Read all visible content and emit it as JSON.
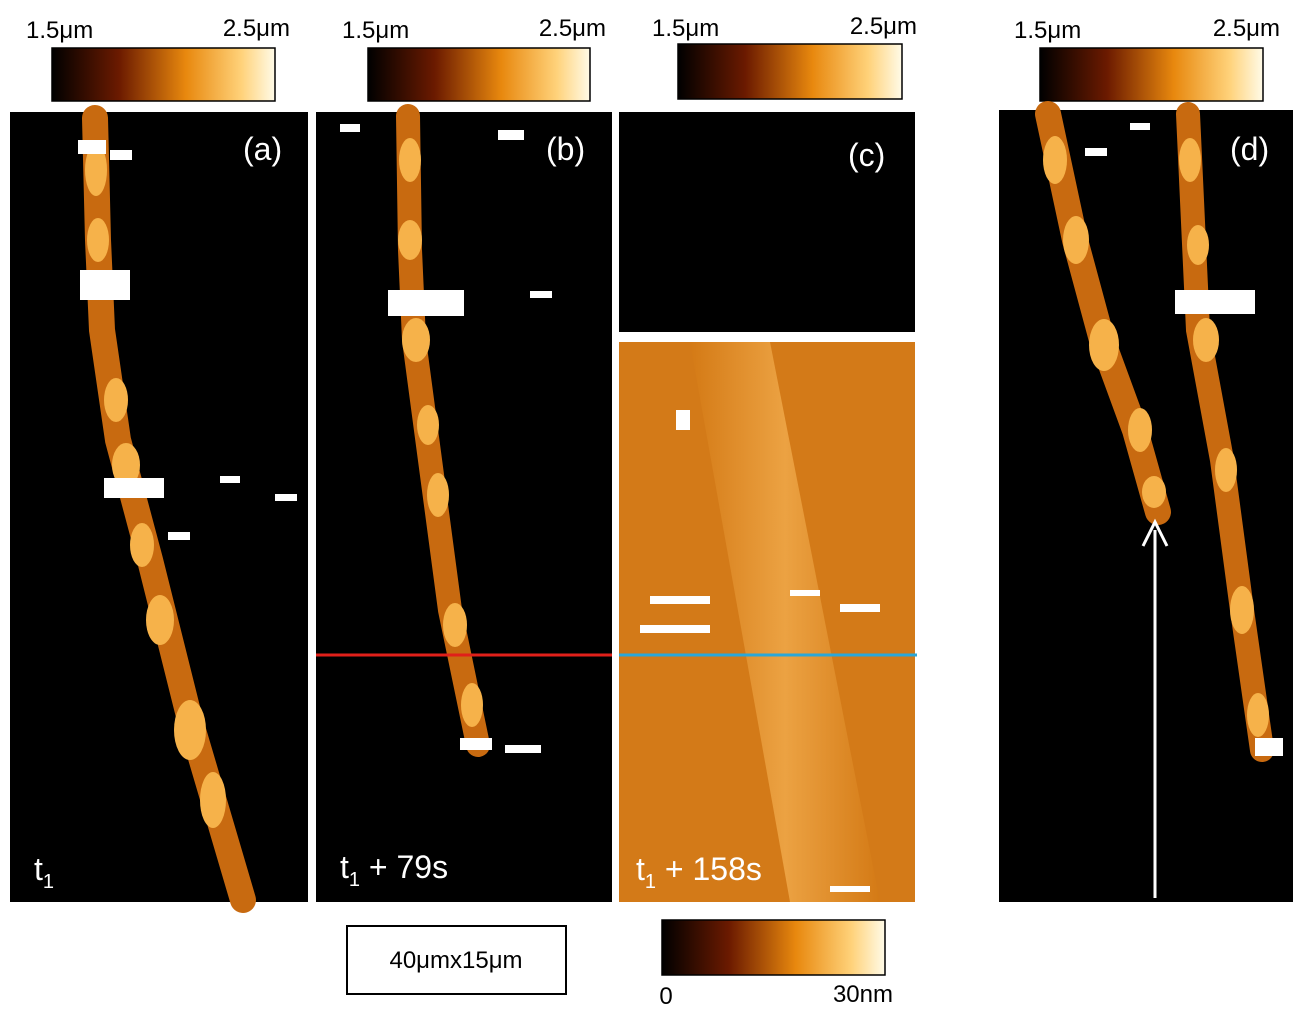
{
  "colorbars": [
    {
      "min_label": "1.5μm",
      "max_label": "2.5μm"
    },
    {
      "min_label": "1.5μm",
      "max_label": "2.5μm"
    },
    {
      "min_label": "1.5μm",
      "max_label": "2.5μm"
    },
    {
      "min_label": "1.5μm",
      "max_label": "2.5μm"
    }
  ],
  "panels": [
    {
      "label": "(a)",
      "time": {
        "base": "t",
        "sub": "1"
      }
    },
    {
      "label": "(b)",
      "time": {
        "base": "t",
        "sub": "1",
        "suffix": " + 79s"
      }
    },
    {
      "label": "(c)",
      "time": {
        "base": "t",
        "sub": "1",
        "suffix": " + 158s"
      }
    },
    {
      "label": "(d)"
    }
  ],
  "scale_box": "40μmx15μm",
  "height_colorbar": {
    "min_label": "0",
    "max_label": "30nm"
  }
}
